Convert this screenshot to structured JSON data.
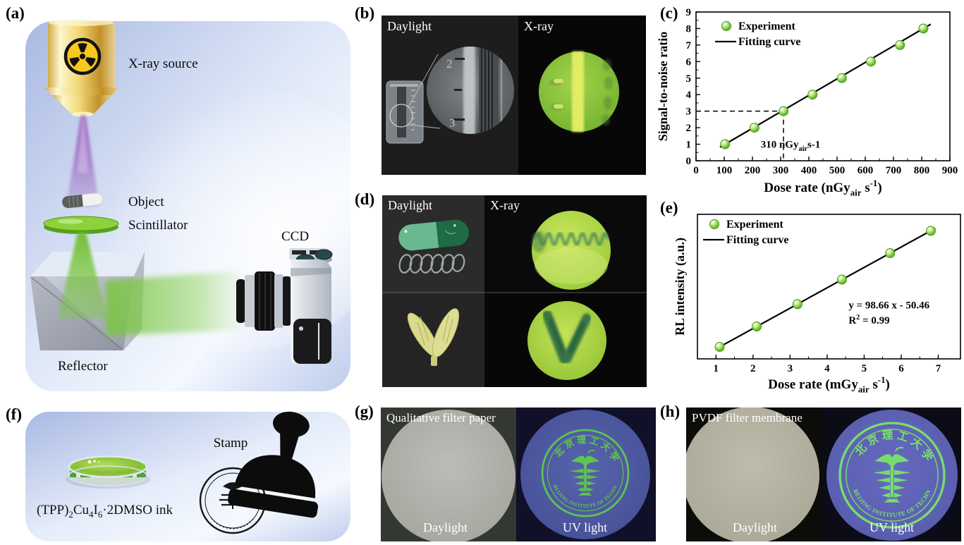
{
  "panels": {
    "a": {
      "label": "(a)",
      "items": {
        "xray_source": "X-ray source",
        "object": "Object",
        "scintillator": "Scintillator",
        "ccd": "CCD",
        "reflector": "Reflector"
      }
    },
    "b": {
      "label": "(b)",
      "daylight": "Daylight",
      "xray": "X-ray",
      "inset_numbers": {
        "two": "2",
        "three": "3"
      }
    },
    "c": {
      "label": "(c)"
    },
    "d": {
      "label": "(d)",
      "daylight": "Daylight",
      "xray": "X-ray"
    },
    "e": {
      "label": "(e)"
    },
    "f": {
      "label": "(f)",
      "stamp": "Stamp",
      "ink_formula": [
        {
          "t": "(TPP)"
        },
        {
          "t": "2",
          "sub": true
        },
        {
          "t": "Cu"
        },
        {
          "t": "4",
          "sub": true
        },
        {
          "t": "I"
        },
        {
          "t": "6",
          "sub": true
        },
        {
          "t": "·2DMSO ink"
        }
      ]
    },
    "g": {
      "label": "(g)",
      "title": "Qualitative filter paper",
      "daylight": "Daylight",
      "uv": "UV light"
    },
    "h": {
      "label": "(h)",
      "title": "PVDF filter membrane",
      "daylight": "Daylight",
      "uv": "UV light"
    },
    "seal": {
      "top_text": "北京理工大学",
      "ring_text": "BEIJING INSTITUTE OF TECHNOLOGY",
      "year": "1940"
    }
  },
  "colors": {
    "point_green": "#7cc83e",
    "point_rim": "#4c9a1f",
    "fit_line": "#000000",
    "seal_green_g": "#5ecb4c",
    "seal_green_h": "#79e468",
    "beam_purple": "#9a5fc0",
    "beam_green": "#7ac943",
    "uv_circle_g": "#4d569e",
    "uv_circle_h": "#5c60b0"
  },
  "chart_data": [
    {
      "id": "chart-c",
      "type": "scatter",
      "ylabel": "Signal-to-noise ratio",
      "xlabel_parts": [
        {
          "t": "Dose rate (nGy"
        },
        {
          "t": "air",
          "sub": true
        },
        {
          "t": " s"
        },
        {
          "t": "-1",
          "sup": true
        },
        {
          "t": ")"
        }
      ],
      "x": [
        103,
        207,
        310,
        413,
        517,
        620,
        723,
        806
      ],
      "y": [
        1,
        2,
        3,
        4,
        5,
        6,
        7,
        8
      ],
      "xlim": [
        0,
        900
      ],
      "ylim": [
        0,
        9
      ],
      "xticks": [
        0,
        100,
        200,
        300,
        400,
        500,
        600,
        700,
        800,
        900
      ],
      "yticks": [
        0,
        1,
        2,
        3,
        4,
        5,
        6,
        7,
        8,
        9
      ],
      "xminor": [
        50,
        150,
        250,
        350,
        450,
        550,
        650,
        750,
        850
      ],
      "yminor": [
        0.5,
        1.5,
        2.5,
        3.5,
        4.5,
        5.5,
        6.5,
        7.5,
        8.5
      ],
      "legend": {
        "experiment": "Experiment",
        "fit": "Fitting curve",
        "pos": [
          100,
          37
        ]
      },
      "fit": {
        "slope": 0.009957,
        "intercept": -0.0256,
        "x1": 85,
        "x2": 832
      },
      "dashed": [
        [
          0,
          3,
          310,
          3
        ],
        [
          310,
          3,
          310,
          0
        ]
      ],
      "annotations": [
        {
          "x": 335,
          "y": 0.78,
          "anchor": "middle",
          "parts": [
            {
              "t": "310 nGy"
            },
            {
              "t": "air",
              "sub": true
            },
            {
              "t": "s-1"
            }
          ]
        }
      ],
      "grid": false,
      "legend_position": "top-left"
    },
    {
      "id": "chart-e",
      "type": "scatter",
      "ylabel": "RL intensity (a.u.)",
      "xlabel_parts": [
        {
          "t": "Dose rate (mGy"
        },
        {
          "t": "air",
          "sub": true
        },
        {
          "t": " s"
        },
        {
          "t": "-1",
          "sup": true
        },
        {
          "t": ")"
        }
      ],
      "x": [
        1.1,
        2.1,
        3.2,
        4.4,
        5.7,
        6.8
      ],
      "y": [
        58,
        157,
        265,
        384,
        512,
        620
      ],
      "xlim": [
        0.5,
        7.6
      ],
      "ylim": [
        0,
        700
      ],
      "xticks": [
        1,
        2,
        3,
        4,
        5,
        6,
        7
      ],
      "yticks": [],
      "xminor": [
        1.5,
        2.5,
        3.5,
        4.5,
        5.5,
        6.5
      ],
      "yminor": [],
      "legend": {
        "experiment": "Experiment",
        "fit": "Fitting curve",
        "pos": [
          83,
          35
        ]
      },
      "fit": {
        "slope": 98.66,
        "intercept": -50.46,
        "x1": 1.02,
        "x2": 6.92
      },
      "dashed": [],
      "annotations": [
        {
          "x": 4.58,
          "y": 245,
          "anchor": "start",
          "parts": [
            {
              "t": "y = 98.66 x - 50.46"
            }
          ]
        },
        {
          "x": 4.58,
          "y": 170,
          "anchor": "start",
          "parts": [
            {
              "t": "R"
            },
            {
              "t": "2",
              "sup": true
            },
            {
              "t": " = 0.99"
            }
          ]
        }
      ],
      "grid": false,
      "legend_position": "top-left"
    }
  ]
}
